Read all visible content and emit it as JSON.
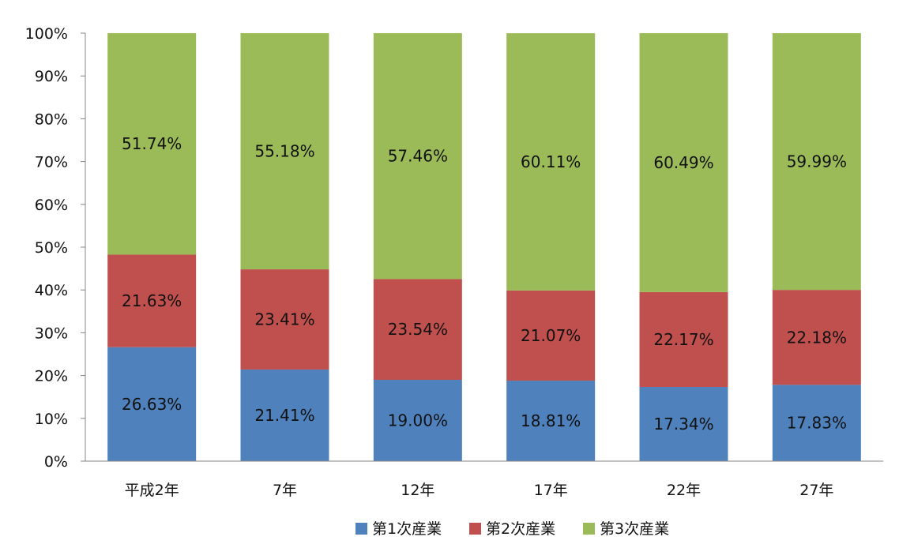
{
  "chart_data": {
    "type": "bar",
    "stacked": true,
    "categories": [
      "平成2年",
      "7年",
      "12年",
      "17年",
      "22年",
      "27年"
    ],
    "series": [
      {
        "name": "第1次産業",
        "color": "#4f81bd",
        "values": [
          26.63,
          21.41,
          19.0,
          18.81,
          17.34,
          17.83
        ],
        "labels": [
          "26.63%",
          "21.41%",
          "19.00%",
          "18.81%",
          "17.34%",
          "17.83%"
        ]
      },
      {
        "name": "第2次産業",
        "color": "#c0504d",
        "values": [
          21.63,
          23.41,
          23.54,
          21.07,
          22.17,
          22.18
        ],
        "labels": [
          "21.63%",
          "23.41%",
          "23.54%",
          "21.07%",
          "22.17%",
          "22.18%"
        ]
      },
      {
        "name": "第3次産業",
        "color": "#9bbb59",
        "values": [
          51.74,
          55.18,
          57.46,
          60.11,
          60.49,
          59.99
        ],
        "labels": [
          "51.74%",
          "55.18%",
          "57.46%",
          "60.11%",
          "60.49%",
          "59.99%"
        ]
      }
    ],
    "yticks": [
      "0%",
      "10%",
      "20%",
      "30%",
      "40%",
      "50%",
      "60%",
      "70%",
      "80%",
      "90%",
      "100%"
    ],
    "ylim": [
      0,
      100
    ],
    "grid": false,
    "legend": "bottom"
  }
}
